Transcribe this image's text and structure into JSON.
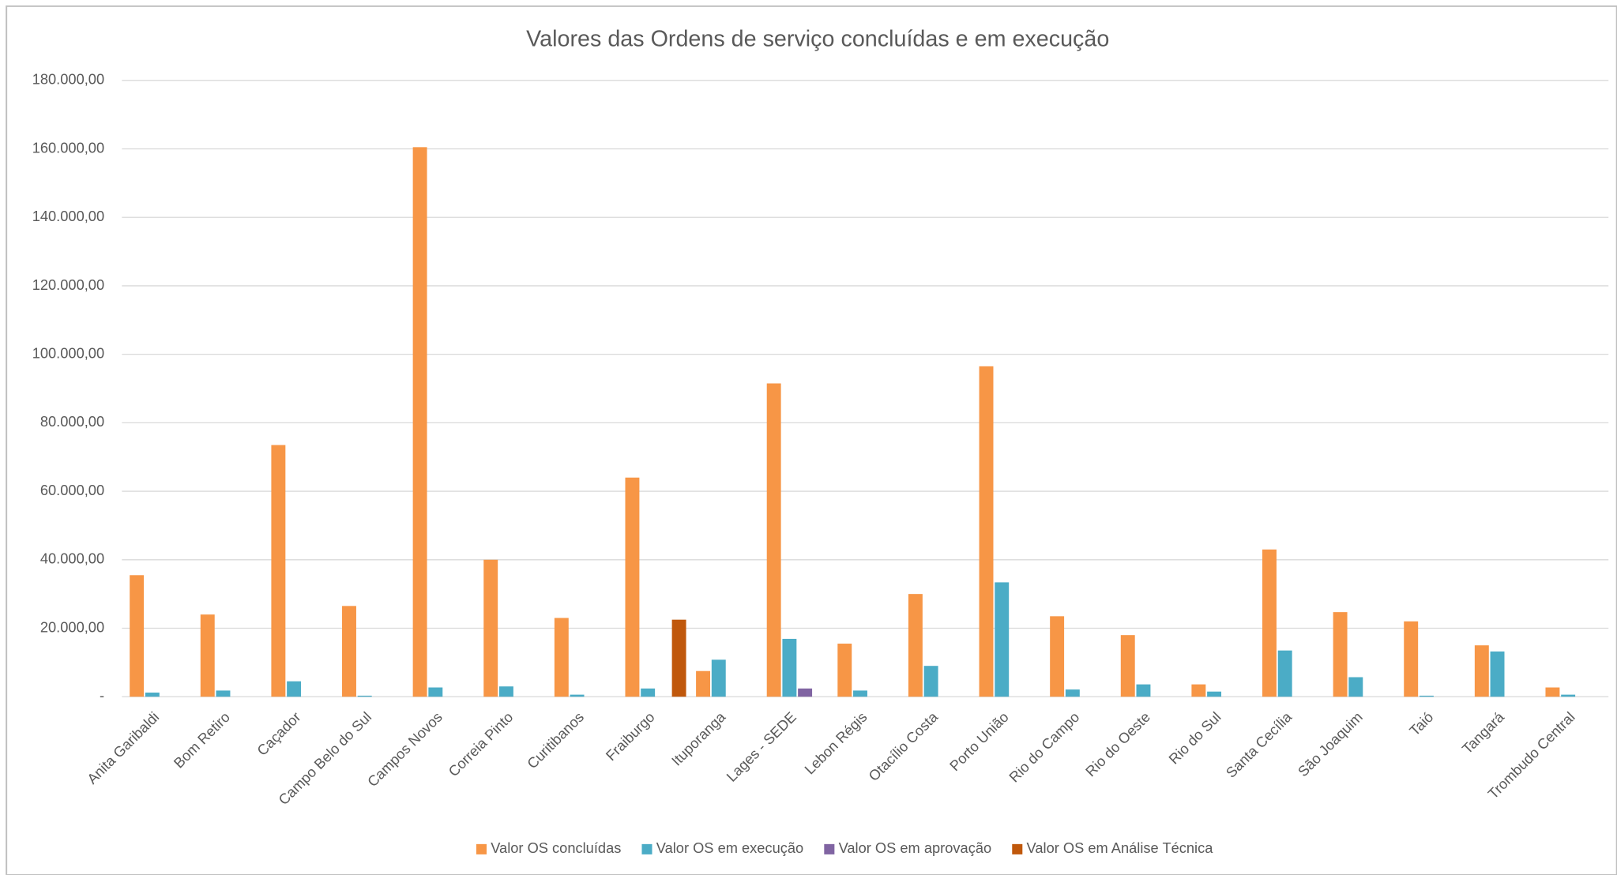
{
  "chart_data": {
    "type": "bar",
    "title": "Valores das Ordens de serviço concluídas e em execução",
    "categories": [
      "Anita Garibaldi",
      "Bom Retiro",
      "Caçador",
      "Campo Belo do Sul",
      "Campos Novos",
      "Correia Pinto",
      "Curitibanos",
      "Fraiburgo",
      "Ituporanga",
      "Lages - SEDE",
      "Lebon Régis",
      "Otacílio Costa",
      "Porto União",
      "Rio do Campo",
      "Rio do Oeste",
      "Rio do Sul",
      "Santa Cecília",
      "São Joaquim",
      "Taió",
      "Tangará",
      "Trombudo Central"
    ],
    "series": [
      {
        "name": "Valor OS concluídas",
        "color": "#f79646",
        "values": [
          35500,
          24000,
          73500,
          26500,
          160500,
          40000,
          23000,
          64000,
          7500,
          91500,
          15500,
          30000,
          96500,
          23500,
          18000,
          3600,
          43000,
          24700,
          22000,
          15000,
          2700
        ]
      },
      {
        "name": "Valor OS em execução",
        "color": "#4bacc6",
        "values": [
          1200,
          1800,
          4500,
          300,
          2700,
          3000,
          600,
          2400,
          10800,
          16900,
          1800,
          9000,
          33400,
          2100,
          3600,
          1500,
          13500,
          5700,
          300,
          13200,
          600
        ]
      },
      {
        "name": "Valor OS em aprovação",
        "color": "#8064a2",
        "values": [
          null,
          null,
          null,
          null,
          null,
          null,
          null,
          null,
          null,
          2400,
          null,
          null,
          null,
          null,
          null,
          null,
          null,
          null,
          null,
          null,
          null
        ]
      },
      {
        "name": "Valor OS em Análise Técnica",
        "color": "#c0580c",
        "values": [
          null,
          null,
          null,
          null,
          null,
          null,
          null,
          22500,
          null,
          null,
          null,
          null,
          null,
          null,
          null,
          null,
          null,
          null,
          null,
          null,
          null
        ]
      }
    ],
    "ylim": [
      0,
      180000
    ],
    "yticks": [
      {
        "value": 0,
        "label": "-"
      },
      {
        "value": 20000,
        "label": "20.000,00"
      },
      {
        "value": 40000,
        "label": "40.000,00"
      },
      {
        "value": 60000,
        "label": "60.000,00"
      },
      {
        "value": 80000,
        "label": "80.000,00"
      },
      {
        "value": 100000,
        "label": "100.000,00"
      },
      {
        "value": 120000,
        "label": "120.000,00"
      },
      {
        "value": 140000,
        "label": "140.000,00"
      },
      {
        "value": 160000,
        "label": "160.000,00"
      },
      {
        "value": 180000,
        "label": "180.000,00"
      }
    ],
    "grid": true,
    "legend": "bottom"
  }
}
